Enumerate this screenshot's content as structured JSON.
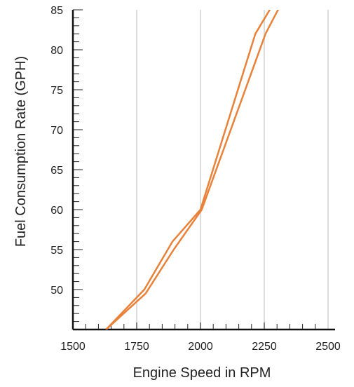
{
  "chart_data": {
    "type": "line",
    "xlabel": "Engine Speed in RPM",
    "ylabel": "Fuel Consumption Rate (GPH)",
    "xlim": [
      1500,
      2500
    ],
    "ylim": [
      45,
      85
    ],
    "x_ticks": [
      1500,
      1750,
      2000,
      2250,
      2500
    ],
    "y_ticks": [
      50,
      55,
      60,
      65,
      70,
      75,
      80,
      85
    ],
    "x_tick_labels": [
      "1500",
      "1750",
      "2000",
      "2250",
      "2500"
    ],
    "y_tick_labels": [
      "50",
      "55",
      "60",
      "65",
      "70",
      "75",
      "80",
      "85"
    ],
    "grid": "vertical",
    "line_color": "#e8823a",
    "series": [
      {
        "x": [
          1630,
          1780,
          1890,
          2000,
          2215,
          2290
        ],
        "y": [
          45,
          50,
          56,
          60,
          82,
          86
        ]
      },
      {
        "x": [
          1630,
          1785,
          1895,
          2005,
          2255,
          2320
        ],
        "y": [
          45,
          49.5,
          55,
          60,
          82,
          86
        ]
      }
    ]
  }
}
